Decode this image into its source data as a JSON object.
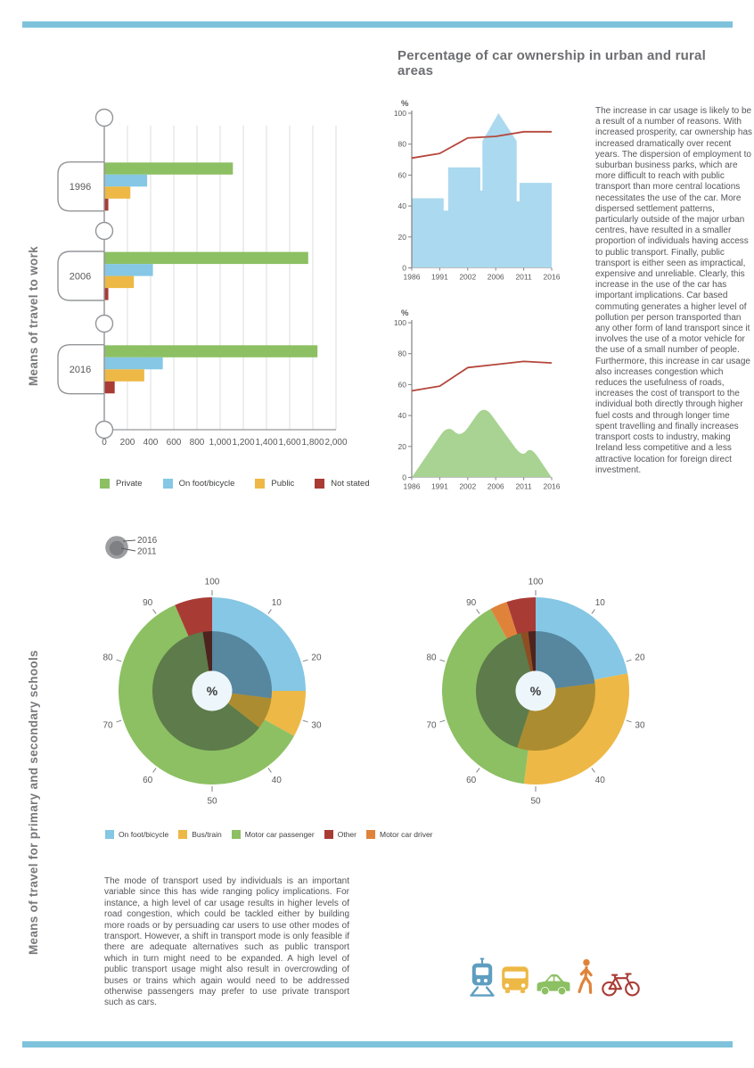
{
  "page": {
    "title": "Percentage of car ownership in urban and rural areas",
    "accent_color": "#7EC3DB"
  },
  "sections": {
    "work": {
      "side_label": "Means of travel to work"
    },
    "schools": {
      "side_label": "Means of travel for primary and secondary schools"
    }
  },
  "texts": {
    "ownership_paragraph": "The increase in car usage is likely to be a result of a number of reasons. With increased prosperity, car ownership has increased dramatically over recent years. The dispersion of employment to suburban business parks, which are more difficult to reach with public transport than more central locations necessitates the use of the car. More dispersed settlement patterns, particularly outside of the major urban centres, have resulted in a smaller proportion of individuals having access to public transport. Finally, public transport is either seen as impractical, expensive and unreliable. Clearly, this increase in the use of the car has important implications. Car based commuting generates a higher level of pollution per person transported than any other form of land transport since it involves the use of a motor vehicle for the use of a small number of people. Furthermore, this increase in car usage also increases congestion which reduces the usefulness of roads, increases the cost of transport to the individual both directly through higher fuel costs and through longer time spent travelling and finally increases transport costs to industry, making Ireland less competitive and a less attractive location for foreign direct investment.",
    "schools_paragraph": "The mode of transport used by individuals is an important variable since this has wide ranging policy implications. For instance, a high level of car usage results in higher levels of road congestion, which could be tackled either by building more roads or by persuading car users to use other modes of transport. However, a shift in transport mode is only feasible if there are adequate alternatives such as public transport which in turn might need to be expanded. A high level of public transport usage might also result in overcrowding of buses or trains which again would need to be addressed otherwise passengers may prefer to use private transport such as cars."
  },
  "work_legend": [
    {
      "label": "Private",
      "color": "#8CC063"
    },
    {
      "label": "On foot/bicycle",
      "color": "#85C7E4"
    },
    {
      "label": "Public",
      "color": "#EDB845"
    },
    {
      "label": "Not stated",
      "color": "#A93B35"
    }
  ],
  "school_legend": [
    {
      "label": "On foot/bicycle",
      "color": "#85C7E4"
    },
    {
      "label": "Bus/train",
      "color": "#EDB845"
    },
    {
      "label": "Motor car passenger",
      "color": "#8CC063"
    },
    {
      "label": "Other",
      "color": "#A93B35"
    },
    {
      "label": "Motor car driver",
      "color": "#E0833A"
    }
  ],
  "rings_legend": {
    "outer": "2016",
    "inner": "2011"
  },
  "transport_icons": [
    {
      "name": "train-icon",
      "color": "#5E9EC0"
    },
    {
      "name": "bus-icon",
      "color": "#EDB845"
    },
    {
      "name": "car-icon",
      "color": "#8CC063"
    },
    {
      "name": "pedestrian-icon",
      "color": "#E0833A"
    },
    {
      "name": "bicycle-icon",
      "color": "#A93B35"
    }
  ],
  "chart_data": [
    {
      "id": "travel_to_work",
      "type": "bar",
      "orientation": "horizontal",
      "title": "Means of travel to work",
      "categories": [
        "1996",
        "2006",
        "2016"
      ],
      "series": [
        {
          "name": "Private",
          "color": "#8CC063",
          "values": [
            1110,
            1760,
            1840
          ]
        },
        {
          "name": "On foot/bicycle",
          "color": "#85C7E4",
          "values": [
            370,
            420,
            505
          ]
        },
        {
          "name": "Public",
          "color": "#EDB845",
          "values": [
            225,
            255,
            345
          ]
        },
        {
          "name": "Not stated",
          "color": "#A93B35",
          "values": [
            35,
            35,
            90
          ]
        }
      ],
      "xlim": [
        0,
        2000
      ],
      "x_tick_labels": [
        "0",
        "200",
        "400",
        "600",
        "800",
        "1,000",
        "1,200",
        "1,400",
        "1,600",
        "1,800",
        "2,000"
      ],
      "grid": true,
      "legend_position": "bottom"
    },
    {
      "id": "urban_car_ownership",
      "type": "line",
      "ylabel": "%",
      "x": [
        "1986",
        "1991",
        "2002",
        "2006",
        "2011",
        "2016"
      ],
      "y_ticks": [
        0,
        20,
        40,
        60,
        80,
        100
      ],
      "ylim": [
        0,
        100
      ],
      "series": [
        {
          "name": "car ownership (urban)",
          "color": "#B5463B",
          "values": [
            71,
            74,
            84,
            85,
            88,
            88
          ]
        }
      ],
      "background_silhouette": "city-skyline",
      "silhouette_color": "#ABD9EF",
      "silhouette_points": [
        [
          0,
          0
        ],
        [
          0,
          45
        ],
        [
          22.8,
          45
        ],
        [
          22.8,
          37
        ],
        [
          26,
          37
        ],
        [
          26,
          65
        ],
        [
          49,
          65
        ],
        [
          49,
          50
        ],
        [
          50.5,
          50
        ],
        [
          50.5,
          82
        ],
        [
          62,
          100
        ],
        [
          75,
          82
        ],
        [
          75,
          43
        ],
        [
          77,
          43
        ],
        [
          77,
          55
        ],
        [
          100,
          55
        ],
        [
          100,
          0
        ]
      ],
      "smooth": false
    },
    {
      "id": "rural_car_ownership",
      "type": "line",
      "ylabel": "%",
      "x": [
        "1986",
        "1991",
        "2002",
        "2006",
        "2011",
        "2016"
      ],
      "y_ticks": [
        0,
        20,
        40,
        60,
        80,
        100
      ],
      "ylim": [
        0,
        100
      ],
      "series": [
        {
          "name": "car ownership (rural)",
          "color": "#B5463B",
          "values": [
            56,
            59,
            71,
            73,
            75,
            74
          ]
        }
      ],
      "background_silhouette": "mountains",
      "silhouette_color": "#A8D392",
      "silhouette_points": [
        [
          0,
          0
        ],
        [
          25.6,
          34
        ],
        [
          35,
          25.5
        ],
        [
          51.6,
          47
        ],
        [
          79,
          13
        ],
        [
          85,
          20
        ],
        [
          100,
          0
        ]
      ],
      "smooth": true
    },
    {
      "id": "school_travel_donut_left",
      "type": "pie",
      "center_label": "%",
      "tick_labels": [
        "10",
        "20",
        "30",
        "40",
        "50",
        "60",
        "70",
        "80",
        "90",
        "100"
      ],
      "rings": [
        {
          "year": "2016",
          "radius": "outer",
          "slices": [
            {
              "name": "On foot/bicycle",
              "from": 0,
              "to": 25,
              "color": "#85C7E4"
            },
            {
              "name": "Bus/train",
              "from": 25,
              "to": 33,
              "color": "#EDB845"
            },
            {
              "name": "Motor car passenger",
              "from": 33,
              "to": 93.5,
              "color": "#8CC063"
            },
            {
              "name": "Other",
              "from": 93.5,
              "to": 100,
              "color": "#A93B35"
            }
          ]
        },
        {
          "year": "2011",
          "radius": "inner",
          "slices": [
            {
              "name": "On foot/bicycle",
              "from": 0,
              "to": 27,
              "color": "#57869F"
            },
            {
              "name": "Bus/train",
              "from": 27,
              "to": 35.5,
              "color": "#AC8C30"
            },
            {
              "name": "Motor car passenger",
              "from": 35.5,
              "to": 97.5,
              "color": "#5E7B4B"
            },
            {
              "name": "Other",
              "from": 97.5,
              "to": 100,
              "color": "#4C231F"
            }
          ]
        }
      ]
    },
    {
      "id": "school_travel_donut_right",
      "type": "pie",
      "center_label": "%",
      "tick_labels": [
        "10",
        "20",
        "30",
        "40",
        "50",
        "60",
        "70",
        "80",
        "90",
        "100"
      ],
      "rings": [
        {
          "year": "2016",
          "radius": "outer",
          "slices": [
            {
              "name": "On foot/bicycle",
              "from": 0,
              "to": 22,
              "color": "#85C7E4"
            },
            {
              "name": "Bus/train",
              "from": 22,
              "to": 52,
              "color": "#EDB845"
            },
            {
              "name": "Motor car passenger",
              "from": 52,
              "to": 92,
              "color": "#8CC063"
            },
            {
              "name": "Motor car driver",
              "from": 92,
              "to": 95,
              "color": "#E0833A"
            },
            {
              "name": "Other",
              "from": 95,
              "to": 100,
              "color": "#A93B35"
            }
          ]
        },
        {
          "year": "2011",
          "radius": "inner",
          "slices": [
            {
              "name": "On foot/bicycle",
              "from": 0,
              "to": 23,
              "color": "#57869F"
            },
            {
              "name": "Bus/train",
              "from": 23,
              "to": 55,
              "color": "#AC8C30"
            },
            {
              "name": "Motor car passenger",
              "from": 55,
              "to": 96,
              "color": "#5E7B4B"
            },
            {
              "name": "Motor car driver",
              "from": 96,
              "to": 98,
              "color": "#8F4E22"
            },
            {
              "name": "Other",
              "from": 98,
              "to": 100,
              "color": "#4C231F"
            }
          ]
        }
      ]
    }
  ]
}
